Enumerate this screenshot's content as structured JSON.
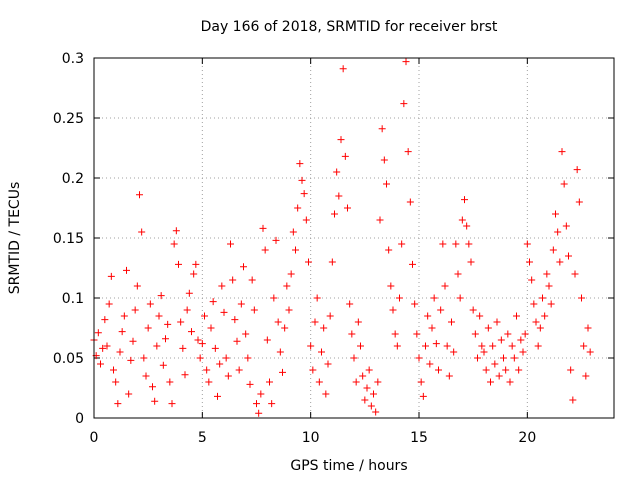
{
  "chart_data": {
    "type": "scatter",
    "title": "Day 166 of 2018, SRMTID for receiver brst",
    "xlabel": "GPS time / hours",
    "ylabel": "SRMTID / TECUs",
    "xlim": [
      0,
      24
    ],
    "ylim": [
      0,
      0.3
    ],
    "x_ticks": [
      0,
      5,
      10,
      15,
      20
    ],
    "x_tick_labels": [
      "0",
      "5",
      "10",
      "15",
      "20"
    ],
    "y_ticks": [
      0,
      0.05,
      0.1,
      0.15,
      0.2,
      0.25,
      0.3
    ],
    "y_tick_labels": [
      "0",
      "0.05",
      "0.1",
      "0.15",
      "0.2",
      "0.25",
      "0.3"
    ],
    "grid": true,
    "marker": "+",
    "color": "#ff0000",
    "series": [
      {
        "name": "SRMTID",
        "points": [
          [
            0.0,
            0.065
          ],
          [
            0.1,
            0.052
          ],
          [
            0.2,
            0.071
          ],
          [
            0.3,
            0.045
          ],
          [
            0.4,
            0.058
          ],
          [
            0.5,
            0.082
          ],
          [
            0.6,
            0.06
          ],
          [
            0.7,
            0.095
          ],
          [
            0.8,
            0.118
          ],
          [
            0.9,
            0.04
          ],
          [
            1.0,
            0.03
          ],
          [
            1.1,
            0.012
          ],
          [
            1.2,
            0.055
          ],
          [
            1.3,
            0.072
          ],
          [
            1.4,
            0.085
          ],
          [
            1.5,
            0.123
          ],
          [
            1.6,
            0.02
          ],
          [
            1.7,
            0.048
          ],
          [
            1.8,
            0.064
          ],
          [
            1.9,
            0.09
          ],
          [
            2.0,
            0.11
          ],
          [
            2.1,
            0.186
          ],
          [
            2.2,
            0.155
          ],
          [
            2.3,
            0.05
          ],
          [
            2.4,
            0.035
          ],
          [
            2.5,
            0.075
          ],
          [
            2.6,
            0.095
          ],
          [
            2.7,
            0.026
          ],
          [
            2.8,
            0.014
          ],
          [
            2.9,
            0.06
          ],
          [
            3.0,
            0.085
          ],
          [
            3.1,
            0.102
          ],
          [
            3.2,
            0.044
          ],
          [
            3.3,
            0.066
          ],
          [
            3.4,
            0.078
          ],
          [
            3.5,
            0.03
          ],
          [
            3.6,
            0.012
          ],
          [
            3.7,
            0.145
          ],
          [
            3.8,
            0.156
          ],
          [
            3.9,
            0.128
          ],
          [
            4.0,
            0.08
          ],
          [
            4.1,
            0.058
          ],
          [
            4.2,
            0.036
          ],
          [
            4.3,
            0.09
          ],
          [
            4.4,
            0.104
          ],
          [
            4.5,
            0.072
          ],
          [
            4.6,
            0.12
          ],
          [
            4.7,
            0.128
          ],
          [
            4.8,
            0.065
          ],
          [
            4.9,
            0.05
          ],
          [
            5.0,
            0.062
          ],
          [
            5.1,
            0.085
          ],
          [
            5.2,
            0.04
          ],
          [
            5.3,
            0.03
          ],
          [
            5.4,
            0.075
          ],
          [
            5.5,
            0.097
          ],
          [
            5.6,
            0.058
          ],
          [
            5.7,
            0.018
          ],
          [
            5.8,
            0.045
          ],
          [
            5.9,
            0.11
          ],
          [
            6.0,
            0.088
          ],
          [
            6.1,
            0.05
          ],
          [
            6.2,
            0.035
          ],
          [
            6.3,
            0.145
          ],
          [
            6.4,
            0.115
          ],
          [
            6.5,
            0.082
          ],
          [
            6.6,
            0.064
          ],
          [
            6.7,
            0.04
          ],
          [
            6.8,
            0.095
          ],
          [
            6.9,
            0.126
          ],
          [
            7.0,
            0.07
          ],
          [
            7.1,
            0.05
          ],
          [
            7.2,
            0.028
          ],
          [
            7.3,
            0.115
          ],
          [
            7.4,
            0.09
          ],
          [
            7.5,
            0.012
          ],
          [
            7.6,
            0.004
          ],
          [
            7.7,
            0.02
          ],
          [
            7.8,
            0.158
          ],
          [
            7.9,
            0.14
          ],
          [
            8.0,
            0.065
          ],
          [
            8.1,
            0.03
          ],
          [
            8.2,
            0.012
          ],
          [
            8.3,
            0.1
          ],
          [
            8.4,
            0.148
          ],
          [
            8.5,
            0.08
          ],
          [
            8.6,
            0.055
          ],
          [
            8.7,
            0.038
          ],
          [
            8.8,
            0.075
          ],
          [
            8.9,
            0.11
          ],
          [
            9.0,
            0.09
          ],
          [
            9.1,
            0.12
          ],
          [
            9.2,
            0.155
          ],
          [
            9.3,
            0.14
          ],
          [
            9.4,
            0.175
          ],
          [
            9.5,
            0.212
          ],
          [
            9.6,
            0.198
          ],
          [
            9.7,
            0.187
          ],
          [
            9.8,
            0.165
          ],
          [
            9.9,
            0.13
          ],
          [
            10.0,
            0.06
          ],
          [
            10.1,
            0.04
          ],
          [
            10.2,
            0.08
          ],
          [
            10.3,
            0.1
          ],
          [
            10.4,
            0.03
          ],
          [
            10.5,
            0.055
          ],
          [
            10.6,
            0.075
          ],
          [
            10.7,
            0.02
          ],
          [
            10.8,
            0.045
          ],
          [
            10.9,
            0.085
          ],
          [
            11.0,
            0.13
          ],
          [
            11.1,
            0.17
          ],
          [
            11.2,
            0.205
          ],
          [
            11.3,
            0.185
          ],
          [
            11.4,
            0.232
          ],
          [
            11.5,
            0.291
          ],
          [
            11.6,
            0.218
          ],
          [
            11.7,
            0.175
          ],
          [
            11.8,
            0.095
          ],
          [
            11.9,
            0.07
          ],
          [
            12.0,
            0.05
          ],
          [
            12.1,
            0.03
          ],
          [
            12.2,
            0.08
          ],
          [
            12.3,
            0.06
          ],
          [
            12.4,
            0.035
          ],
          [
            12.5,
            0.015
          ],
          [
            12.6,
            0.025
          ],
          [
            12.7,
            0.04
          ],
          [
            12.8,
            0.01
          ],
          [
            12.9,
            0.02
          ],
          [
            13.0,
            0.005
          ],
          [
            13.1,
            0.03
          ],
          [
            13.2,
            0.165
          ],
          [
            13.3,
            0.241
          ],
          [
            13.4,
            0.215
          ],
          [
            13.5,
            0.195
          ],
          [
            13.6,
            0.14
          ],
          [
            13.7,
            0.11
          ],
          [
            13.8,
            0.09
          ],
          [
            13.9,
            0.07
          ],
          [
            14.0,
            0.06
          ],
          [
            14.1,
            0.1
          ],
          [
            14.2,
            0.145
          ],
          [
            14.3,
            0.262
          ],
          [
            14.4,
            0.297
          ],
          [
            14.5,
            0.222
          ],
          [
            14.6,
            0.18
          ],
          [
            14.7,
            0.128
          ],
          [
            14.8,
            0.095
          ],
          [
            14.9,
            0.07
          ],
          [
            15.0,
            0.05
          ],
          [
            15.1,
            0.03
          ],
          [
            15.2,
            0.018
          ],
          [
            15.3,
            0.06
          ],
          [
            15.4,
            0.085
          ],
          [
            15.5,
            0.045
          ],
          [
            15.6,
            0.075
          ],
          [
            15.7,
            0.1
          ],
          [
            15.8,
            0.062
          ],
          [
            15.9,
            0.04
          ],
          [
            16.0,
            0.09
          ],
          [
            16.1,
            0.145
          ],
          [
            16.2,
            0.11
          ],
          [
            16.3,
            0.06
          ],
          [
            16.4,
            0.035
          ],
          [
            16.5,
            0.08
          ],
          [
            16.6,
            0.055
          ],
          [
            16.7,
            0.145
          ],
          [
            16.8,
            0.12
          ],
          [
            16.9,
            0.1
          ],
          [
            17.0,
            0.165
          ],
          [
            17.1,
            0.182
          ],
          [
            17.2,
            0.16
          ],
          [
            17.3,
            0.145
          ],
          [
            17.4,
            0.13
          ],
          [
            17.5,
            0.09
          ],
          [
            17.6,
            0.07
          ],
          [
            17.7,
            0.05
          ],
          [
            17.8,
            0.085
          ],
          [
            17.9,
            0.06
          ],
          [
            18.0,
            0.055
          ],
          [
            18.1,
            0.04
          ],
          [
            18.2,
            0.075
          ],
          [
            18.3,
            0.03
          ],
          [
            18.4,
            0.06
          ],
          [
            18.5,
            0.045
          ],
          [
            18.6,
            0.08
          ],
          [
            18.7,
            0.035
          ],
          [
            18.8,
            0.065
          ],
          [
            18.9,
            0.05
          ],
          [
            19.0,
            0.04
          ],
          [
            19.1,
            0.07
          ],
          [
            19.2,
            0.03
          ],
          [
            19.3,
            0.06
          ],
          [
            19.4,
            0.05
          ],
          [
            19.5,
            0.085
          ],
          [
            19.6,
            0.04
          ],
          [
            19.7,
            0.065
          ],
          [
            19.8,
            0.055
          ],
          [
            19.9,
            0.07
          ],
          [
            20.0,
            0.145
          ],
          [
            20.1,
            0.13
          ],
          [
            20.2,
            0.115
          ],
          [
            20.3,
            0.095
          ],
          [
            20.4,
            0.08
          ],
          [
            20.5,
            0.06
          ],
          [
            20.6,
            0.075
          ],
          [
            20.7,
            0.1
          ],
          [
            20.8,
            0.085
          ],
          [
            20.9,
            0.12
          ],
          [
            21.0,
            0.11
          ],
          [
            21.1,
            0.095
          ],
          [
            21.2,
            0.14
          ],
          [
            21.3,
            0.17
          ],
          [
            21.4,
            0.155
          ],
          [
            21.5,
            0.13
          ],
          [
            21.6,
            0.222
          ],
          [
            21.7,
            0.195
          ],
          [
            21.8,
            0.16
          ],
          [
            21.9,
            0.135
          ],
          [
            22.0,
            0.04
          ],
          [
            22.1,
            0.015
          ],
          [
            22.2,
            0.12
          ],
          [
            22.3,
            0.207
          ],
          [
            22.4,
            0.18
          ],
          [
            22.5,
            0.1
          ],
          [
            22.6,
            0.06
          ],
          [
            22.7,
            0.035
          ],
          [
            22.8,
            0.075
          ],
          [
            22.9,
            0.055
          ]
        ]
      }
    ]
  }
}
